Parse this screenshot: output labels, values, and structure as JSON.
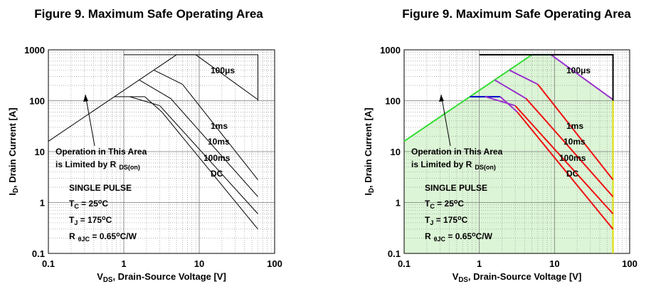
{
  "chart_data": [
    {
      "type": "line",
      "title": "Figure 9. Maximum Safe Operating Area",
      "xlabel": [
        {
          "text": "V"
        },
        {
          "text": "DS",
          "style": "sub"
        },
        {
          "text": ", Drain-Source Voltage [V]"
        }
      ],
      "ylabel": [
        {
          "text": "I"
        },
        {
          "text": "D",
          "style": "sub"
        },
        {
          "text": ", Drain Current [A]"
        }
      ],
      "xscale": "log",
      "yscale": "log",
      "xlim": [
        0.1,
        100
      ],
      "ylim": [
        0.1,
        1000
      ],
      "xticks": [
        0.1,
        1,
        10,
        100
      ],
      "yticks": [
        0.1,
        1,
        10,
        100,
        1000
      ],
      "xminor": [
        0.2,
        0.3,
        0.4,
        0.5,
        0.6,
        0.7,
        0.8,
        0.9,
        2,
        3,
        4,
        5,
        6,
        7,
        8,
        9,
        20,
        30,
        40,
        50,
        60,
        70,
        80,
        90
      ],
      "yminor": [
        0.2,
        0.3,
        0.4,
        0.5,
        0.6,
        0.7,
        0.8,
        0.9,
        2,
        3,
        4,
        5,
        6,
        7,
        8,
        9,
        20,
        30,
        40,
        50,
        60,
        70,
        80,
        90,
        200,
        300,
        400,
        500,
        600,
        700,
        800,
        900
      ],
      "grid": true,
      "line_width": 1,
      "series": [
        {
          "color": "#000000",
          "x": [
            0.1,
            5
          ],
          "values": [
            16,
            800
          ]
        },
        {
          "color": "#000000",
          "x": [
            5,
            9,
            60
          ],
          "values": [
            800,
            800,
            105
          ]
        },
        {
          "color": "#000000",
          "x": [
            1,
            60,
            60
          ],
          "values": [
            800,
            800,
            100
          ]
        },
        {
          "color": "#000000",
          "x": [
            0.75,
            1.9
          ],
          "values": [
            120,
            120
          ]
        },
        {
          "color": "#000000",
          "x": [
            2.5,
            6,
            60
          ],
          "values": [
            400,
            210,
            2.8
          ]
        },
        {
          "color": "#000000",
          "x": [
            1.6,
            4.2,
            60
          ],
          "values": [
            256,
            110,
            1.3
          ]
        },
        {
          "color": "#000000",
          "x": [
            1.2,
            3,
            60
          ],
          "values": [
            120,
            80,
            0.6
          ]
        },
        {
          "color": "#000000",
          "x": [
            1.9,
            3.2,
            60
          ],
          "values": [
            120,
            60,
            0.3
          ]
        }
      ],
      "annotations": [
        {
          "segments": [
            {
              "text": "100μs"
            }
          ]
        },
        {
          "segments": [
            {
              "text": "1ms"
            }
          ]
        },
        {
          "segments": [
            {
              "text": "10ms"
            }
          ]
        },
        {
          "segments": [
            {
              "text": "100ms"
            }
          ]
        },
        {
          "segments": [
            {
              "text": "DC"
            }
          ]
        },
        {
          "segments": [
            {
              "text": "Operation in This Area"
            }
          ]
        },
        {
          "segments": [
            {
              "text": "is Limited by R"
            },
            {
              "text": "DS(on)",
              "style": "sub"
            }
          ]
        },
        {
          "segments": [
            {
              "text": "SINGLE PULSE"
            }
          ]
        },
        {
          "segments": [
            {
              "text": "T"
            },
            {
              "text": "C",
              "style": "sub"
            },
            {
              "text": " = 25"
            },
            {
              "text": "o",
              "style": "sup"
            },
            {
              "text": "C"
            }
          ]
        },
        {
          "segments": [
            {
              "text": "T"
            },
            {
              "text": "J",
              "style": "sub"
            },
            {
              "text": " = 175"
            },
            {
              "text": "o",
              "style": "sup"
            },
            {
              "text": "C"
            }
          ]
        },
        {
          "segments": [
            {
              "text": "R"
            },
            {
              "text": "θJC",
              "style": "sub"
            },
            {
              "text": " = 0.65"
            },
            {
              "text": "o",
              "style": "sup"
            },
            {
              "text": "C/W"
            }
          ]
        }
      ]
    },
    {
      "type": "line",
      "title": "Figure 9. Maximum Safe Operating Area",
      "xlabel": [
        {
          "text": "V"
        },
        {
          "text": "DS",
          "style": "sub"
        },
        {
          "text": ", Drain-Source Voltage [V]"
        }
      ],
      "ylabel": [
        {
          "text": "I"
        },
        {
          "text": "D",
          "style": "sub"
        },
        {
          "text": ", Drain Current [A]"
        }
      ],
      "xscale": "log",
      "yscale": "log",
      "xlim": [
        0.1,
        100
      ],
      "ylim": [
        0.1,
        1000
      ],
      "xticks": [
        0.1,
        1,
        10,
        100
      ],
      "yticks": [
        0.1,
        1,
        10,
        100,
        1000
      ],
      "xminor": [
        0.2,
        0.3,
        0.4,
        0.5,
        0.6,
        0.7,
        0.8,
        0.9,
        2,
        3,
        4,
        5,
        6,
        7,
        8,
        9,
        20,
        30,
        40,
        50,
        60,
        70,
        80,
        90
      ],
      "yminor": [
        0.2,
        0.3,
        0.4,
        0.5,
        0.6,
        0.7,
        0.8,
        0.9,
        2,
        3,
        4,
        5,
        6,
        7,
        8,
        9,
        20,
        30,
        40,
        50,
        60,
        70,
        80,
        90,
        200,
        300,
        400,
        500,
        600,
        700,
        800,
        900
      ],
      "grid": true,
      "line_width": 2,
      "fill": {
        "color": "#dcf5d6",
        "series": [
          0,
          1,
          2,
          3
        ]
      },
      "series": [
        {
          "color": "#33dd33",
          "x": [
            0.1,
            5
          ],
          "values": [
            16,
            800
          ]
        },
        {
          "color": "#33cccc",
          "x": [
            5,
            9
          ],
          "values": [
            800,
            800
          ]
        },
        {
          "color": "#9933cc",
          "x": [
            9,
            60
          ],
          "values": [
            800,
            105
          ]
        },
        {
          "color": "#dddd00",
          "x": [
            60,
            60
          ],
          "values": [
            105,
            0.1
          ]
        },
        {
          "color": "#000000",
          "x": [
            1,
            60,
            60
          ],
          "values": [
            800,
            800,
            100
          ]
        },
        {
          "color": "#0000cc",
          "x": [
            0.75,
            1.9
          ],
          "values": [
            120,
            120
          ]
        },
        {
          "color": "#9933cc",
          "x": [
            2.5,
            6
          ],
          "values": [
            400,
            210
          ]
        },
        {
          "color": "#ee1111",
          "x": [
            6,
            60
          ],
          "values": [
            210,
            2.8
          ]
        },
        {
          "color": "#9933cc",
          "x": [
            1.6,
            4.2
          ],
          "values": [
            256,
            110
          ]
        },
        {
          "color": "#ee1111",
          "x": [
            4.2,
            60
          ],
          "values": [
            110,
            1.3
          ]
        },
        {
          "color": "#9933cc",
          "x": [
            1.2,
            3
          ],
          "values": [
            120,
            80
          ]
        },
        {
          "color": "#ee1111",
          "x": [
            3,
            60
          ],
          "values": [
            80,
            0.6
          ]
        },
        {
          "color": "#9933cc",
          "x": [
            1.9,
            3.2
          ],
          "values": [
            120,
            60
          ]
        },
        {
          "color": "#ee1111",
          "x": [
            3.2,
            60
          ],
          "values": [
            60,
            0.3
          ]
        }
      ],
      "annotations": [
        {
          "segments": [
            {
              "text": "100μs"
            }
          ]
        },
        {
          "segments": [
            {
              "text": "1ms"
            }
          ]
        },
        {
          "segments": [
            {
              "text": "10ms"
            }
          ]
        },
        {
          "segments": [
            {
              "text": "100ms"
            }
          ]
        },
        {
          "segments": [
            {
              "text": "DC"
            }
          ]
        },
        {
          "segments": [
            {
              "text": "Operation in This Area"
            }
          ]
        },
        {
          "segments": [
            {
              "text": "is Limited by R"
            },
            {
              "text": "DS(on)",
              "style": "sub"
            }
          ]
        },
        {
          "segments": [
            {
              "text": "SINGLE PULSE"
            }
          ]
        },
        {
          "segments": [
            {
              "text": "T"
            },
            {
              "text": "C",
              "style": "sub"
            },
            {
              "text": " = 25"
            },
            {
              "text": "o",
              "style": "sup"
            },
            {
              "text": "C"
            }
          ]
        },
        {
          "segments": [
            {
              "text": "T"
            },
            {
              "text": "J",
              "style": "sub"
            },
            {
              "text": " = 175"
            },
            {
              "text": "o",
              "style": "sup"
            },
            {
              "text": "C"
            }
          ]
        },
        {
          "segments": [
            {
              "text": "R"
            },
            {
              "text": "θJC",
              "style": "sub"
            },
            {
              "text": " = 0.65"
            },
            {
              "text": "o",
              "style": "sup"
            },
            {
              "text": "C/W"
            }
          ]
        }
      ]
    }
  ]
}
